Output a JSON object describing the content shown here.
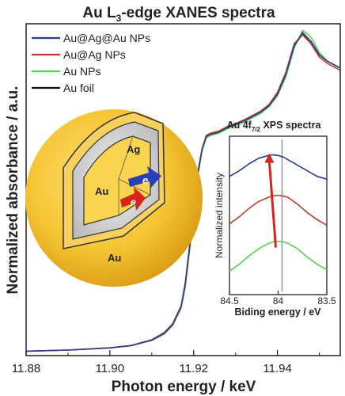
{
  "chart_data": [
    {
      "type": "line",
      "title_main": "Au L",
      "title_sub": "3",
      "title_rest": "-edge XANES spectra",
      "xlabel": "Photon energy / keV",
      "ylabel": "Normalized absorbance / a.u.",
      "xlim": [
        11.88,
        11.955
      ],
      "ylim": [
        0,
        1.5
      ],
      "x_ticks": [
        11.88,
        11.9,
        11.92,
        11.94
      ],
      "x_tick_labels": [
        "11.88",
        "11.90",
        "11.92",
        "11.94"
      ],
      "legend_position": "top-left",
      "grid": false,
      "series": [
        {
          "name": "Au@Ag@Au NPs",
          "color": "#2b3d8f",
          "x": [
            11.88,
            11.89,
            11.9,
            11.905,
            11.91,
            11.913,
            11.915,
            11.917,
            11.918,
            11.919,
            11.92,
            11.921,
            11.922,
            11.923,
            11.924,
            11.926,
            11.928,
            11.93,
            11.932,
            11.934,
            11.936,
            11.938,
            11.94,
            11.942,
            11.944,
            11.946,
            11.948,
            11.95,
            11.952,
            11.955
          ],
          "y": [
            0.02,
            0.025,
            0.035,
            0.045,
            0.07,
            0.1,
            0.14,
            0.22,
            0.32,
            0.48,
            0.66,
            0.82,
            0.93,
            0.99,
            1.0,
            1.01,
            1.03,
            1.045,
            1.06,
            1.08,
            1.1,
            1.13,
            1.18,
            1.27,
            1.4,
            1.46,
            1.42,
            1.36,
            1.33,
            1.3
          ]
        },
        {
          "name": "Au@Ag NPs",
          "color": "#c0392b",
          "x": [
            11.88,
            11.89,
            11.9,
            11.905,
            11.91,
            11.913,
            11.915,
            11.917,
            11.918,
            11.919,
            11.92,
            11.921,
            11.922,
            11.923,
            11.924,
            11.926,
            11.928,
            11.93,
            11.932,
            11.934,
            11.936,
            11.938,
            11.94,
            11.942,
            11.944,
            11.946,
            11.948,
            11.95,
            11.952,
            11.955
          ],
          "y": [
            0.02,
            0.025,
            0.035,
            0.045,
            0.072,
            0.105,
            0.145,
            0.225,
            0.33,
            0.49,
            0.67,
            0.83,
            0.935,
            0.995,
            1.005,
            1.015,
            1.035,
            1.05,
            1.065,
            1.085,
            1.105,
            1.135,
            1.19,
            1.28,
            1.41,
            1.45,
            1.41,
            1.35,
            1.32,
            1.29
          ]
        },
        {
          "name": "Au NPs",
          "color": "#4cd84c",
          "x": [
            11.88,
            11.89,
            11.9,
            11.905,
            11.91,
            11.913,
            11.915,
            11.917,
            11.918,
            11.919,
            11.92,
            11.921,
            11.922,
            11.923,
            11.924,
            11.926,
            11.928,
            11.93,
            11.932,
            11.934,
            11.936,
            11.938,
            11.94,
            11.942,
            11.944,
            11.946,
            11.948,
            11.95,
            11.952,
            11.955
          ],
          "y": [
            0.02,
            0.025,
            0.035,
            0.045,
            0.068,
            0.098,
            0.138,
            0.215,
            0.31,
            0.47,
            0.65,
            0.81,
            0.925,
            0.985,
            0.995,
            1.005,
            1.025,
            1.04,
            1.055,
            1.075,
            1.095,
            1.125,
            1.175,
            1.26,
            1.39,
            1.47,
            1.44,
            1.37,
            1.33,
            1.3
          ]
        },
        {
          "name": "Au foil",
          "color": "#111111",
          "x": [
            11.88,
            11.89,
            11.9,
            11.905,
            11.91,
            11.913,
            11.915,
            11.917,
            11.918,
            11.919,
            11.92,
            11.921,
            11.922,
            11.923,
            11.924,
            11.926,
            11.928,
            11.93,
            11.932,
            11.934,
            11.936,
            11.938,
            11.94,
            11.942,
            11.944,
            11.946,
            11.948,
            11.95,
            11.952,
            11.955
          ],
          "y": [
            0.02,
            0.025,
            0.035,
            0.045,
            0.07,
            0.1,
            0.14,
            0.22,
            0.32,
            0.48,
            0.66,
            0.82,
            0.93,
            0.99,
            1.0,
            1.01,
            1.03,
            1.045,
            1.06,
            1.08,
            1.1,
            1.13,
            1.18,
            1.27,
            1.4,
            1.455,
            1.42,
            1.36,
            1.33,
            1.3
          ]
        }
      ]
    },
    {
      "type": "line",
      "title_main": "Au 4f",
      "title_sub": "7/2",
      "title_rest": " XPS spectra",
      "xlabel": "Biding energy / eV",
      "ylabel": "Normalized intensity",
      "xlim": [
        84.5,
        83.5
      ],
      "x_ticks": [
        84.5,
        84,
        83.5
      ],
      "x_tick_labels": [
        "84.5",
        "84",
        "83.5"
      ],
      "reference_line_x": 83.96,
      "series": [
        {
          "name": "Au@Ag@Au NPs",
          "color": "#2b3d8f",
          "x": [
            84.5,
            84.4,
            84.3,
            84.2,
            84.1,
            84.05,
            84.0,
            83.95,
            83.9,
            83.8,
            83.7,
            83.6,
            83.5
          ],
          "y": [
            0.78,
            0.82,
            0.87,
            0.91,
            0.93,
            0.935,
            0.93,
            0.92,
            0.9,
            0.86,
            0.82,
            0.78,
            0.76
          ]
        },
        {
          "name": "Au@Ag NPs",
          "color": "#c0392b",
          "x": [
            84.5,
            84.4,
            84.3,
            84.2,
            84.1,
            84.05,
            84.0,
            83.95,
            83.9,
            83.8,
            83.7,
            83.6,
            83.5
          ],
          "y": [
            0.44,
            0.49,
            0.55,
            0.6,
            0.63,
            0.64,
            0.645,
            0.64,
            0.63,
            0.58,
            0.52,
            0.47,
            0.43
          ]
        },
        {
          "name": "Au NPs",
          "color": "#4cd84c",
          "x": [
            84.5,
            84.4,
            84.3,
            84.2,
            84.1,
            84.05,
            84.0,
            83.95,
            83.9,
            83.8,
            83.7,
            83.6,
            83.5
          ],
          "y": [
            0.1,
            0.15,
            0.21,
            0.26,
            0.3,
            0.31,
            0.315,
            0.31,
            0.3,
            0.26,
            0.2,
            0.15,
            0.11
          ]
        }
      ]
    }
  ],
  "schematic": {
    "label_ag": "Ag",
    "label_au_core": "Au",
    "label_au_shell": "Au",
    "label_e_blue": "e",
    "label_e_red": "e"
  }
}
